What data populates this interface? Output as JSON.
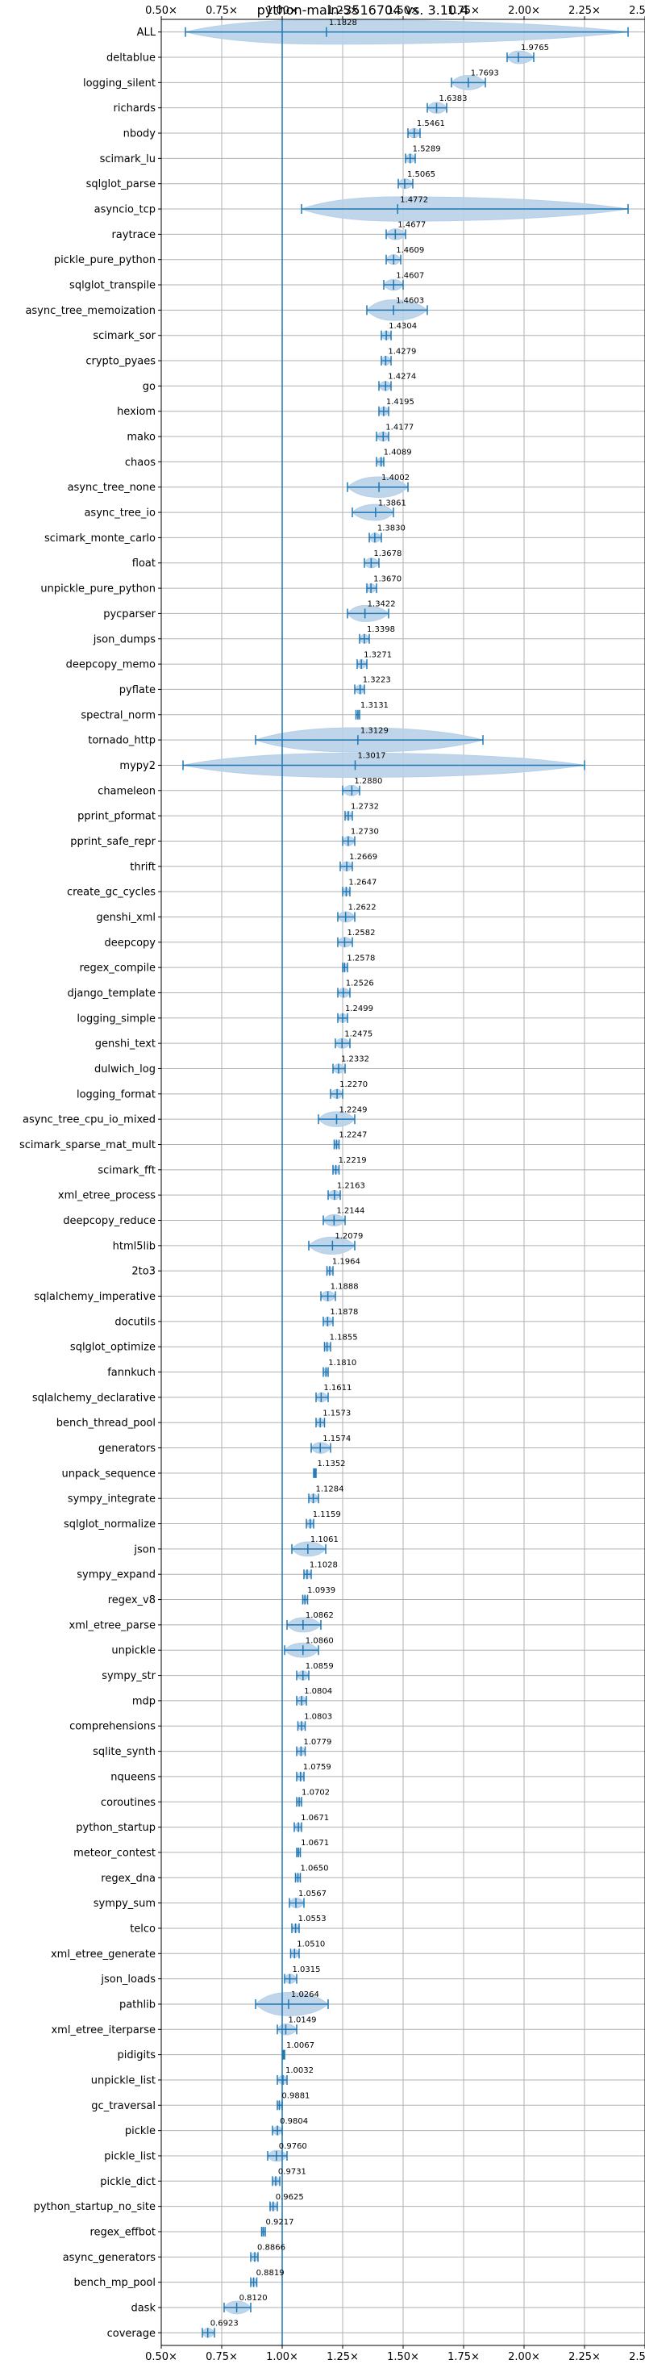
{
  "chart_data": {
    "type": "violin",
    "title": "python-main-3516704 vs. 3.10.4",
    "xlabel": "",
    "ylabel": "",
    "xlim": [
      0.5,
      2.5
    ],
    "xticks": [
      "0.50×",
      "0.75×",
      "1.00×",
      "1.25×",
      "1.50×",
      "1.75×",
      "2.00×",
      "2.25×",
      "2.50×"
    ],
    "xtick_values": [
      0.5,
      0.75,
      1.0,
      1.25,
      1.5,
      1.75,
      2.0,
      2.25,
      2.5
    ],
    "reference_line": 1.0,
    "grid": true,
    "accent_color": "#1f77b4",
    "violin_color": "#b7d0e8",
    "benchmarks": [
      {
        "name": "ALL",
        "value": 1.1828,
        "min": 0.6,
        "max": 2.43
      },
      {
        "name": "deltablue",
        "value": 1.9765,
        "min": 1.93,
        "max": 2.04
      },
      {
        "name": "logging_silent",
        "value": 1.7693,
        "min": 1.7,
        "max": 1.84
      },
      {
        "name": "richards",
        "value": 1.6383,
        "min": 1.6,
        "max": 1.68
      },
      {
        "name": "nbody",
        "value": 1.5461,
        "min": 1.52,
        "max": 1.57
      },
      {
        "name": "scimark_lu",
        "value": 1.5289,
        "min": 1.51,
        "max": 1.55
      },
      {
        "name": "sqlglot_parse",
        "value": 1.5065,
        "min": 1.48,
        "max": 1.54
      },
      {
        "name": "asyncio_tcp",
        "value": 1.4772,
        "min": 1.08,
        "max": 2.43
      },
      {
        "name": "raytrace",
        "value": 1.4677,
        "min": 1.43,
        "max": 1.51
      },
      {
        "name": "pickle_pure_python",
        "value": 1.4609,
        "min": 1.43,
        "max": 1.49
      },
      {
        "name": "sqlglot_transpile",
        "value": 1.4607,
        "min": 1.42,
        "max": 1.5
      },
      {
        "name": "async_tree_memoization",
        "value": 1.4603,
        "min": 1.35,
        "max": 1.6
      },
      {
        "name": "scimark_sor",
        "value": 1.4304,
        "min": 1.41,
        "max": 1.45
      },
      {
        "name": "crypto_pyaes",
        "value": 1.4279,
        "min": 1.41,
        "max": 1.45
      },
      {
        "name": "go",
        "value": 1.4274,
        "min": 1.4,
        "max": 1.45
      },
      {
        "name": "hexiom",
        "value": 1.4195,
        "min": 1.4,
        "max": 1.44
      },
      {
        "name": "mako",
        "value": 1.4177,
        "min": 1.39,
        "max": 1.44
      },
      {
        "name": "chaos",
        "value": 1.4089,
        "min": 1.39,
        "max": 1.42
      },
      {
        "name": "async_tree_none",
        "value": 1.4002,
        "min": 1.27,
        "max": 1.52
      },
      {
        "name": "async_tree_io",
        "value": 1.3861,
        "min": 1.29,
        "max": 1.46
      },
      {
        "name": "scimark_monte_carlo",
        "value": 1.383,
        "min": 1.36,
        "max": 1.41
      },
      {
        "name": "float",
        "value": 1.3678,
        "min": 1.34,
        "max": 1.4
      },
      {
        "name": "unpickle_pure_python",
        "value": 1.367,
        "min": 1.35,
        "max": 1.39
      },
      {
        "name": "pycparser",
        "value": 1.3422,
        "min": 1.27,
        "max": 1.44
      },
      {
        "name": "json_dumps",
        "value": 1.3398,
        "min": 1.32,
        "max": 1.36
      },
      {
        "name": "deepcopy_memo",
        "value": 1.3271,
        "min": 1.31,
        "max": 1.35
      },
      {
        "name": "pyflate",
        "value": 1.3223,
        "min": 1.3,
        "max": 1.34
      },
      {
        "name": "spectral_norm",
        "value": 1.3131,
        "min": 1.305,
        "max": 1.32
      },
      {
        "name": "tornado_http",
        "value": 1.3129,
        "min": 0.89,
        "max": 1.83
      },
      {
        "name": "mypy2",
        "value": 1.3017,
        "min": 0.59,
        "max": 2.25
      },
      {
        "name": "chameleon",
        "value": 1.288,
        "min": 1.25,
        "max": 1.32
      },
      {
        "name": "pprint_pformat",
        "value": 1.2732,
        "min": 1.26,
        "max": 1.29
      },
      {
        "name": "pprint_safe_repr",
        "value": 1.273,
        "min": 1.25,
        "max": 1.3
      },
      {
        "name": "thrift",
        "value": 1.2669,
        "min": 1.24,
        "max": 1.29
      },
      {
        "name": "create_gc_cycles",
        "value": 1.2647,
        "min": 1.25,
        "max": 1.28
      },
      {
        "name": "genshi_xml",
        "value": 1.2622,
        "min": 1.23,
        "max": 1.3
      },
      {
        "name": "deepcopy",
        "value": 1.2582,
        "min": 1.23,
        "max": 1.29
      },
      {
        "name": "regex_compile",
        "value": 1.2578,
        "min": 1.25,
        "max": 1.27
      },
      {
        "name": "django_template",
        "value": 1.2526,
        "min": 1.23,
        "max": 1.28
      },
      {
        "name": "logging_simple",
        "value": 1.2499,
        "min": 1.23,
        "max": 1.27
      },
      {
        "name": "genshi_text",
        "value": 1.2475,
        "min": 1.22,
        "max": 1.28
      },
      {
        "name": "dulwich_log",
        "value": 1.2332,
        "min": 1.21,
        "max": 1.26
      },
      {
        "name": "logging_format",
        "value": 1.227,
        "min": 1.2,
        "max": 1.25
      },
      {
        "name": "async_tree_cpu_io_mixed",
        "value": 1.2249,
        "min": 1.15,
        "max": 1.3
      },
      {
        "name": "scimark_sparse_mat_mult",
        "value": 1.2247,
        "min": 1.215,
        "max": 1.235
      },
      {
        "name": "scimark_fft",
        "value": 1.2219,
        "min": 1.21,
        "max": 1.235
      },
      {
        "name": "xml_etree_process",
        "value": 1.2163,
        "min": 1.19,
        "max": 1.24
      },
      {
        "name": "deepcopy_reduce",
        "value": 1.2144,
        "min": 1.17,
        "max": 1.26
      },
      {
        "name": "html5lib",
        "value": 1.2079,
        "min": 1.11,
        "max": 1.3
      },
      {
        "name": "2to3",
        "value": 1.1964,
        "min": 1.185,
        "max": 1.21
      },
      {
        "name": "sqlalchemy_imperative",
        "value": 1.1888,
        "min": 1.16,
        "max": 1.22
      },
      {
        "name": "docutils",
        "value": 1.1878,
        "min": 1.17,
        "max": 1.21
      },
      {
        "name": "sqlglot_optimize",
        "value": 1.1855,
        "min": 1.175,
        "max": 1.2
      },
      {
        "name": "fannkuch",
        "value": 1.181,
        "min": 1.17,
        "max": 1.19
      },
      {
        "name": "sqlalchemy_declarative",
        "value": 1.1611,
        "min": 1.14,
        "max": 1.19
      },
      {
        "name": "bench_thread_pool",
        "value": 1.1573,
        "min": 1.14,
        "max": 1.175
      },
      {
        "name": "generators",
        "value": 1.1574,
        "min": 1.12,
        "max": 1.2
      },
      {
        "name": "unpack_sequence",
        "value": 1.1352,
        "min": 1.13,
        "max": 1.14
      },
      {
        "name": "sympy_integrate",
        "value": 1.1284,
        "min": 1.11,
        "max": 1.15
      },
      {
        "name": "sqlglot_normalize",
        "value": 1.1159,
        "min": 1.1,
        "max": 1.13
      },
      {
        "name": "json",
        "value": 1.1061,
        "min": 1.04,
        "max": 1.18
      },
      {
        "name": "sympy_expand",
        "value": 1.1028,
        "min": 1.09,
        "max": 1.12
      },
      {
        "name": "regex_v8",
        "value": 1.0939,
        "min": 1.085,
        "max": 1.105
      },
      {
        "name": "xml_etree_parse",
        "value": 1.0862,
        "min": 1.02,
        "max": 1.16
      },
      {
        "name": "unpickle",
        "value": 1.086,
        "min": 1.01,
        "max": 1.15
      },
      {
        "name": "sympy_str",
        "value": 1.0859,
        "min": 1.06,
        "max": 1.11
      },
      {
        "name": "mdp",
        "value": 1.0804,
        "min": 1.06,
        "max": 1.1
      },
      {
        "name": "comprehensions",
        "value": 1.0803,
        "min": 1.065,
        "max": 1.095
      },
      {
        "name": "sqlite_synth",
        "value": 1.0779,
        "min": 1.06,
        "max": 1.095
      },
      {
        "name": "nqueens",
        "value": 1.0759,
        "min": 1.06,
        "max": 1.09
      },
      {
        "name": "coroutines",
        "value": 1.0702,
        "min": 1.06,
        "max": 1.08
      },
      {
        "name": "python_startup",
        "value": 1.0671,
        "min": 1.05,
        "max": 1.08
      },
      {
        "name": "meteor_contest",
        "value": 1.0671,
        "min": 1.06,
        "max": 1.075
      },
      {
        "name": "regex_dna",
        "value": 1.065,
        "min": 1.055,
        "max": 1.075
      },
      {
        "name": "sympy_sum",
        "value": 1.0567,
        "min": 1.03,
        "max": 1.09
      },
      {
        "name": "telco",
        "value": 1.0553,
        "min": 1.04,
        "max": 1.07
      },
      {
        "name": "xml_etree_generate",
        "value": 1.051,
        "min": 1.035,
        "max": 1.07
      },
      {
        "name": "json_loads",
        "value": 1.0315,
        "min": 1.01,
        "max": 1.06
      },
      {
        "name": "pathlib",
        "value": 1.0264,
        "min": 0.89,
        "max": 1.19
      },
      {
        "name": "xml_etree_iterparse",
        "value": 1.0149,
        "min": 0.98,
        "max": 1.06
      },
      {
        "name": "pidigits",
        "value": 1.0067,
        "min": 1.003,
        "max": 1.01
      },
      {
        "name": "unpickle_list",
        "value": 1.0032,
        "min": 0.98,
        "max": 1.02
      },
      {
        "name": "gc_traversal",
        "value": 0.9881,
        "min": 0.98,
        "max": 1.0
      },
      {
        "name": "pickle",
        "value": 0.9804,
        "min": 0.96,
        "max": 1.0
      },
      {
        "name": "pickle_list",
        "value": 0.976,
        "min": 0.94,
        "max": 1.02
      },
      {
        "name": "pickle_dict",
        "value": 0.9731,
        "min": 0.96,
        "max": 0.99
      },
      {
        "name": "python_startup_no_site",
        "value": 0.9625,
        "min": 0.95,
        "max": 0.98
      },
      {
        "name": "regex_effbot",
        "value": 0.9217,
        "min": 0.915,
        "max": 0.93
      },
      {
        "name": "async_generators",
        "value": 0.8866,
        "min": 0.87,
        "max": 0.9
      },
      {
        "name": "bench_mp_pool",
        "value": 0.8819,
        "min": 0.87,
        "max": 0.895
      },
      {
        "name": "dask",
        "value": 0.812,
        "min": 0.76,
        "max": 0.87
      },
      {
        "name": "coverage",
        "value": 0.6923,
        "min": 0.67,
        "max": 0.72
      }
    ]
  }
}
